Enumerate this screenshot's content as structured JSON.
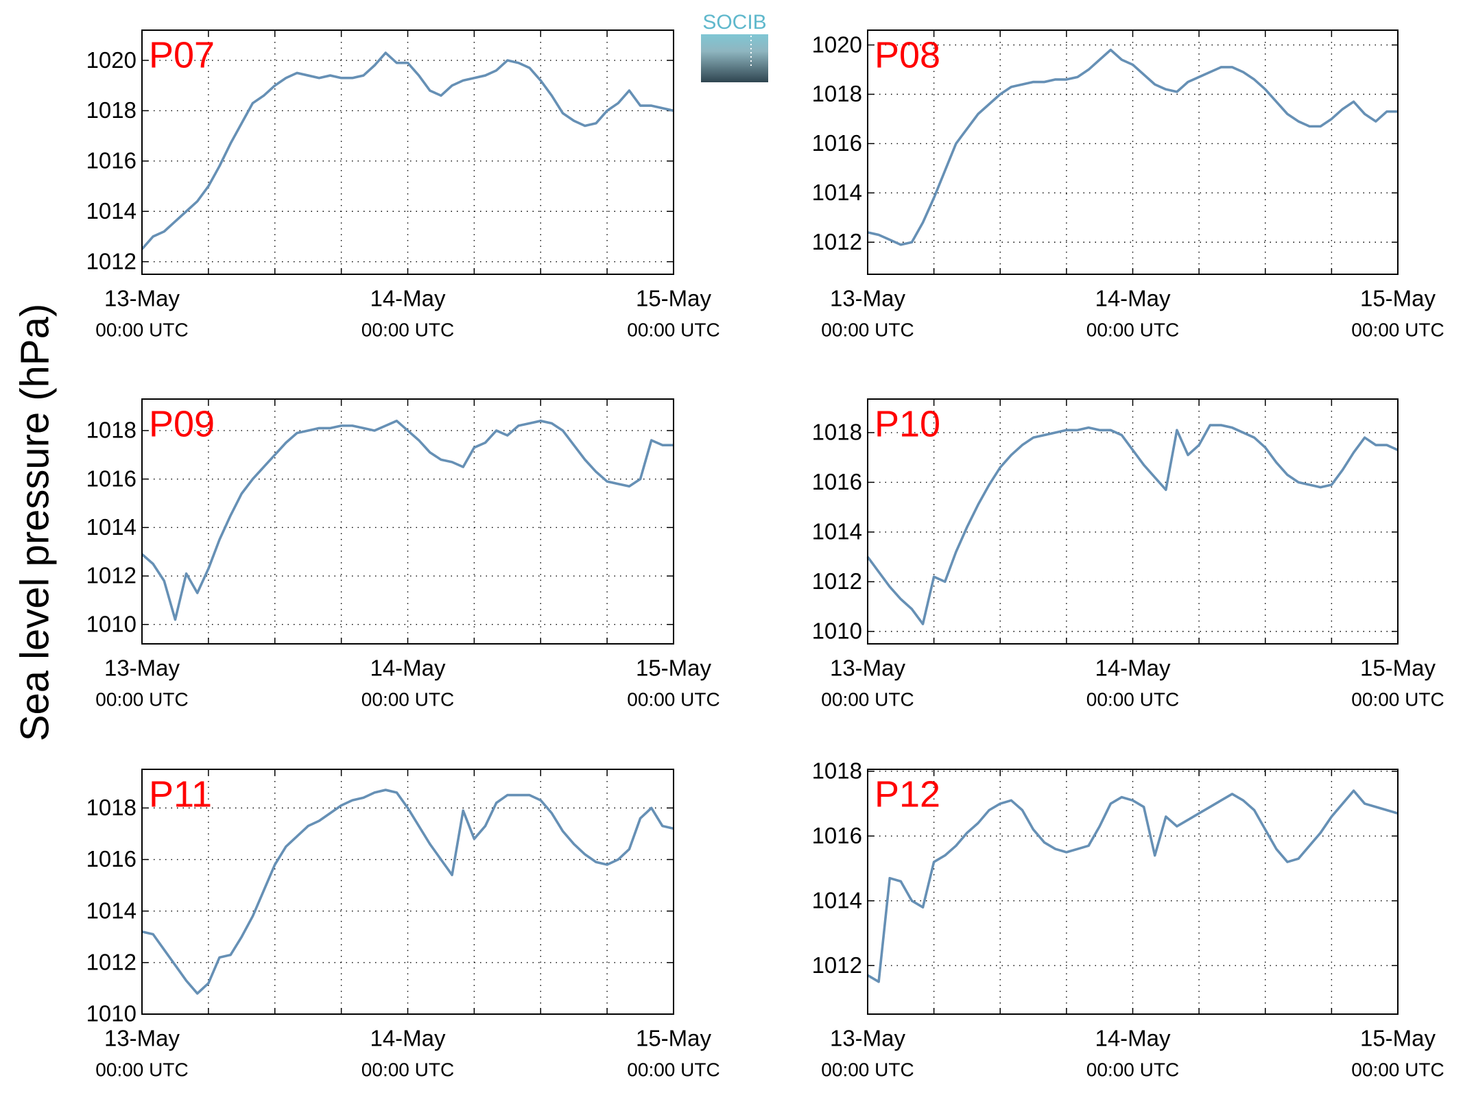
{
  "ylabel": "Sea level pressure (hPa)",
  "logo": "SOCIB",
  "chart_data": [
    {
      "type": "line",
      "title": "P07",
      "x": [
        0,
        1,
        2,
        3,
        4,
        5,
        6,
        7,
        8,
        9,
        10,
        11,
        12,
        13,
        14,
        15,
        16,
        17,
        18,
        19,
        20,
        21,
        22,
        23,
        24,
        25,
        26,
        27,
        28,
        29,
        30,
        31,
        32,
        33,
        34,
        35,
        36,
        37,
        38,
        39,
        40,
        41,
        42,
        43,
        44,
        45,
        46,
        47,
        48
      ],
      "values": [
        1012.5,
        1013.0,
        1013.2,
        1013.6,
        1014.0,
        1014.4,
        1015.0,
        1015.8,
        1016.7,
        1017.5,
        1018.3,
        1018.6,
        1019.0,
        1019.3,
        1019.5,
        1019.4,
        1019.3,
        1019.4,
        1019.3,
        1019.3,
        1019.4,
        1019.8,
        1020.3,
        1019.9,
        1019.9,
        1019.4,
        1018.8,
        1018.6,
        1019.0,
        1019.2,
        1019.3,
        1019.4,
        1019.6,
        1020.0,
        1019.9,
        1019.7,
        1019.2,
        1018.6,
        1017.9,
        1017.6,
        1017.4,
        1017.5,
        1018.0,
        1018.3,
        1018.8,
        1018.2,
        1018.2,
        1018.1,
        1018.0
      ],
      "color": "#6690b5",
      "ylim": [
        1011.5,
        1021.2
      ],
      "yticks": [
        1012,
        1014,
        1016,
        1018,
        1020
      ],
      "xlim": [
        0,
        48
      ],
      "xticks": [
        {
          "value": 0,
          "label": "13-May",
          "sublabel": "00:00 UTC"
        },
        {
          "value": 6,
          "label": null
        },
        {
          "value": 12,
          "label": null
        },
        {
          "value": 18,
          "label": null
        },
        {
          "value": 24,
          "label": "14-May",
          "sublabel": "00:00 UTC"
        },
        {
          "value": 30,
          "label": null
        },
        {
          "value": 36,
          "label": null
        },
        {
          "value": 42,
          "label": null
        },
        {
          "value": 48,
          "label": "15-May",
          "sublabel": "00:00 UTC"
        }
      ],
      "grid": true
    },
    {
      "type": "line",
      "title": "P08",
      "x": [
        0,
        1,
        2,
        3,
        4,
        5,
        6,
        7,
        8,
        9,
        10,
        11,
        12,
        13,
        14,
        15,
        16,
        17,
        18,
        19,
        20,
        21,
        22,
        23,
        24,
        25,
        26,
        27,
        28,
        29,
        30,
        31,
        32,
        33,
        34,
        35,
        36,
        37,
        38,
        39,
        40,
        41,
        42,
        43,
        44,
        45,
        46,
        47,
        48
      ],
      "values": [
        1012.4,
        1012.3,
        1012.1,
        1011.9,
        1012.0,
        1012.8,
        1013.8,
        1014.9,
        1016.0,
        1016.6,
        1017.2,
        1017.6,
        1018.0,
        1018.3,
        1018.4,
        1018.5,
        1018.5,
        1018.6,
        1018.6,
        1018.7,
        1019.0,
        1019.4,
        1019.8,
        1019.4,
        1019.2,
        1018.8,
        1018.4,
        1018.2,
        1018.1,
        1018.5,
        1018.7,
        1018.9,
        1019.1,
        1019.1,
        1018.9,
        1018.6,
        1018.2,
        1017.7,
        1017.2,
        1016.9,
        1016.7,
        1016.7,
        1017.0,
        1017.4,
        1017.7,
        1017.2,
        1016.9,
        1017.3,
        1017.3
      ],
      "color": "#6690b5",
      "ylim": [
        1010.7,
        1020.6
      ],
      "yticks": [
        1012,
        1014,
        1016,
        1018,
        1020
      ],
      "xlim": [
        0,
        48
      ],
      "xticks": [
        {
          "value": 0,
          "label": "13-May",
          "sublabel": "00:00 UTC"
        },
        {
          "value": 6,
          "label": null
        },
        {
          "value": 12,
          "label": null
        },
        {
          "value": 18,
          "label": null
        },
        {
          "value": 24,
          "label": "14-May",
          "sublabel": "00:00 UTC"
        },
        {
          "value": 30,
          "label": null
        },
        {
          "value": 36,
          "label": null
        },
        {
          "value": 42,
          "label": null
        },
        {
          "value": 48,
          "label": "15-May",
          "sublabel": "00:00 UTC"
        }
      ],
      "grid": true
    },
    {
      "type": "line",
      "title": "P09",
      "x": [
        0,
        1,
        2,
        3,
        4,
        5,
        6,
        7,
        8,
        9,
        10,
        11,
        12,
        13,
        14,
        15,
        16,
        17,
        18,
        19,
        20,
        21,
        22,
        23,
        24,
        25,
        26,
        27,
        28,
        29,
        30,
        31,
        32,
        33,
        34,
        35,
        36,
        37,
        38,
        39,
        40,
        41,
        42,
        43,
        44,
        45,
        46,
        47,
        48
      ],
      "values": [
        1012.9,
        1012.5,
        1011.8,
        1010.2,
        1012.1,
        1011.3,
        1012.3,
        1013.5,
        1014.5,
        1015.4,
        1016.0,
        1016.5,
        1017.0,
        1017.5,
        1017.9,
        1018.0,
        1018.1,
        1018.1,
        1018.2,
        1018.2,
        1018.1,
        1018.0,
        1018.2,
        1018.4,
        1018.0,
        1017.6,
        1017.1,
        1016.8,
        1016.7,
        1016.5,
        1017.3,
        1017.5,
        1018.0,
        1017.8,
        1018.2,
        1018.3,
        1018.4,
        1018.3,
        1018.0,
        1017.4,
        1016.8,
        1016.3,
        1015.9,
        1015.8,
        1015.7,
        1016.0,
        1017.6,
        1017.4,
        1017.4
      ],
      "color": "#6690b5",
      "ylim": [
        1009.2,
        1019.3
      ],
      "yticks": [
        1010,
        1012,
        1014,
        1016,
        1018
      ],
      "xlim": [
        0,
        48
      ],
      "xticks": [
        {
          "value": 0,
          "label": "13-May",
          "sublabel": "00:00 UTC"
        },
        {
          "value": 6,
          "label": null
        },
        {
          "value": 12,
          "label": null
        },
        {
          "value": 18,
          "label": null
        },
        {
          "value": 24,
          "label": "14-May",
          "sublabel": "00:00 UTC"
        },
        {
          "value": 30,
          "label": null
        },
        {
          "value": 36,
          "label": null
        },
        {
          "value": 42,
          "label": null
        },
        {
          "value": 48,
          "label": "15-May",
          "sublabel": "00:00 UTC"
        }
      ],
      "grid": true
    },
    {
      "type": "line",
      "title": "P10",
      "x": [
        0,
        1,
        2,
        3,
        4,
        5,
        6,
        7,
        8,
        9,
        10,
        11,
        12,
        13,
        14,
        15,
        16,
        17,
        18,
        19,
        20,
        21,
        22,
        23,
        24,
        25,
        26,
        27,
        28,
        29,
        30,
        31,
        32,
        33,
        34,
        35,
        36,
        37,
        38,
        39,
        40,
        41,
        42,
        43,
        44,
        45,
        46,
        47,
        48
      ],
      "values": [
        1013.0,
        1012.4,
        1011.8,
        1011.3,
        1010.9,
        1010.3,
        1012.2,
        1012.0,
        1013.2,
        1014.2,
        1015.1,
        1015.9,
        1016.6,
        1017.1,
        1017.5,
        1017.8,
        1017.9,
        1018.0,
        1018.1,
        1018.1,
        1018.2,
        1018.1,
        1018.1,
        1017.9,
        1017.3,
        1016.7,
        1016.2,
        1015.7,
        1018.1,
        1017.1,
        1017.5,
        1018.3,
        1018.3,
        1018.2,
        1018.0,
        1017.8,
        1017.4,
        1016.8,
        1016.3,
        1016.0,
        1015.9,
        1015.8,
        1015.9,
        1016.5,
        1017.2,
        1017.8,
        1017.5,
        1017.5,
        1017.3
      ],
      "color": "#6690b5",
      "ylim": [
        1009.5,
        1019.35
      ],
      "yticks": [
        1010,
        1012,
        1014,
        1016,
        1018
      ],
      "xlim": [
        0,
        48
      ],
      "xticks": [
        {
          "value": 0,
          "label": "13-May",
          "sublabel": "00:00 UTC"
        },
        {
          "value": 6,
          "label": null
        },
        {
          "value": 12,
          "label": null
        },
        {
          "value": 18,
          "label": null
        },
        {
          "value": 24,
          "label": "14-May",
          "sublabel": "00:00 UTC"
        },
        {
          "value": 30,
          "label": null
        },
        {
          "value": 36,
          "label": null
        },
        {
          "value": 42,
          "label": null
        },
        {
          "value": 48,
          "label": "15-May",
          "sublabel": "00:00 UTC"
        }
      ],
      "grid": true
    },
    {
      "type": "line",
      "title": "P11",
      "x": [
        0,
        1,
        2,
        3,
        4,
        5,
        6,
        7,
        8,
        9,
        10,
        11,
        12,
        13,
        14,
        15,
        16,
        17,
        18,
        19,
        20,
        21,
        22,
        23,
        24,
        25,
        26,
        27,
        28,
        29,
        30,
        31,
        32,
        33,
        34,
        35,
        36,
        37,
        38,
        39,
        40,
        41,
        42,
        43,
        44,
        45,
        46,
        47,
        48
      ],
      "values": [
        1013.2,
        1013.1,
        1012.5,
        1011.9,
        1011.3,
        1010.8,
        1011.2,
        1012.2,
        1012.3,
        1013.0,
        1013.8,
        1014.8,
        1015.8,
        1016.5,
        1016.9,
        1017.3,
        1017.5,
        1017.8,
        1018.1,
        1018.3,
        1018.4,
        1018.6,
        1018.7,
        1018.6,
        1018.0,
        1017.3,
        1016.6,
        1016.0,
        1015.4,
        1017.9,
        1016.8,
        1017.3,
        1018.2,
        1018.5,
        1018.5,
        1018.5,
        1018.3,
        1017.8,
        1017.1,
        1016.6,
        1016.2,
        1015.9,
        1015.8,
        1016.0,
        1016.4,
        1017.6,
        1018.0,
        1017.3,
        1017.2
      ],
      "color": "#6690b5",
      "ylim": [
        1010,
        1019.5
      ],
      "yticks": [
        1010,
        1012,
        1014,
        1016,
        1018
      ],
      "xlim": [
        0,
        48
      ],
      "xticks": [
        {
          "value": 0,
          "label": "13-May",
          "sublabel": "00:00 UTC"
        },
        {
          "value": 6,
          "label": null
        },
        {
          "value": 12,
          "label": null
        },
        {
          "value": 18,
          "label": null
        },
        {
          "value": 24,
          "label": "14-May",
          "sublabel": "00:00 UTC"
        },
        {
          "value": 30,
          "label": null
        },
        {
          "value": 36,
          "label": null
        },
        {
          "value": 42,
          "label": null
        },
        {
          "value": 48,
          "label": "15-May",
          "sublabel": "00:00 UTC"
        }
      ],
      "grid": true
    },
    {
      "type": "line",
      "title": "P12",
      "x": [
        0,
        1,
        2,
        3,
        4,
        5,
        6,
        7,
        8,
        9,
        10,
        11,
        12,
        13,
        14,
        15,
        16,
        17,
        18,
        19,
        20,
        21,
        22,
        23,
        24,
        25,
        26,
        27,
        28,
        29,
        30,
        31,
        32,
        33,
        34,
        35,
        36,
        37,
        38,
        39,
        40,
        41,
        42,
        43,
        44,
        45,
        46,
        47,
        48
      ],
      "values": [
        1011.7,
        1011.5,
        1014.7,
        1014.6,
        1014.0,
        1013.8,
        1015.2,
        1015.4,
        1015.7,
        1016.1,
        1016.4,
        1016.8,
        1017.0,
        1017.1,
        1016.8,
        1016.2,
        1015.8,
        1015.6,
        1015.5,
        1015.6,
        1015.7,
        1016.3,
        1017.0,
        1017.2,
        1017.1,
        1016.9,
        1015.4,
        1016.6,
        1016.3,
        1016.5,
        1016.7,
        1016.9,
        1017.1,
        1017.3,
        1017.1,
        1016.8,
        1016.2,
        1015.6,
        1015.2,
        1015.3,
        1015.7,
        1016.1,
        1016.6,
        1017.0,
        1017.4,
        1017.0,
        1016.9,
        1016.8,
        1016.7
      ],
      "color": "#6690b5",
      "ylim": [
        1010.5,
        1018.06
      ],
      "yticks": [
        1012,
        1014,
        1016,
        1018
      ],
      "xlim": [
        0,
        48
      ],
      "xticks": [
        {
          "value": 0,
          "label": "13-May",
          "sublabel": "00:00 UTC"
        },
        {
          "value": 6,
          "label": null
        },
        {
          "value": 12,
          "label": null
        },
        {
          "value": 18,
          "label": null
        },
        {
          "value": 24,
          "label": "14-May",
          "sublabel": "00:00 UTC"
        },
        {
          "value": 30,
          "label": null
        },
        {
          "value": 36,
          "label": null
        },
        {
          "value": 42,
          "label": null
        },
        {
          "value": 48,
          "label": "15-May",
          "sublabel": "00:00 UTC"
        }
      ],
      "grid": true
    }
  ]
}
